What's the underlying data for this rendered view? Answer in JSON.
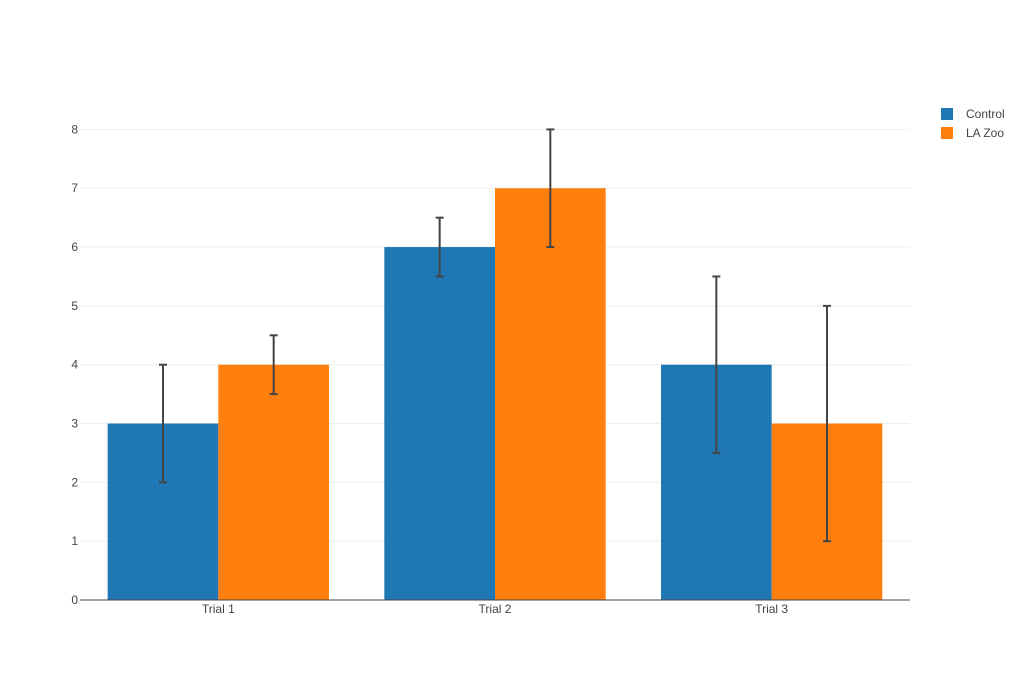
{
  "chart_data": {
    "type": "bar",
    "categories": [
      "Trial 1",
      "Trial 2",
      "Trial 3"
    ],
    "series": [
      {
        "name": "Control",
        "values": [
          3,
          6,
          4
        ],
        "errors": [
          1,
          0.5,
          1.5
        ],
        "color": "#1f77b4"
      },
      {
        "name": "LA Zoo",
        "values": [
          4,
          7,
          3
        ],
        "errors": [
          0.5,
          1,
          2
        ],
        "color": "#ff7f0e"
      }
    ],
    "ylim": [
      0,
      8.5
    ],
    "yticks": [
      0,
      1,
      2,
      3,
      4,
      5,
      6,
      7,
      8
    ],
    "grid": true,
    "legend": "top-right",
    "error_bar_color": "#444444"
  }
}
